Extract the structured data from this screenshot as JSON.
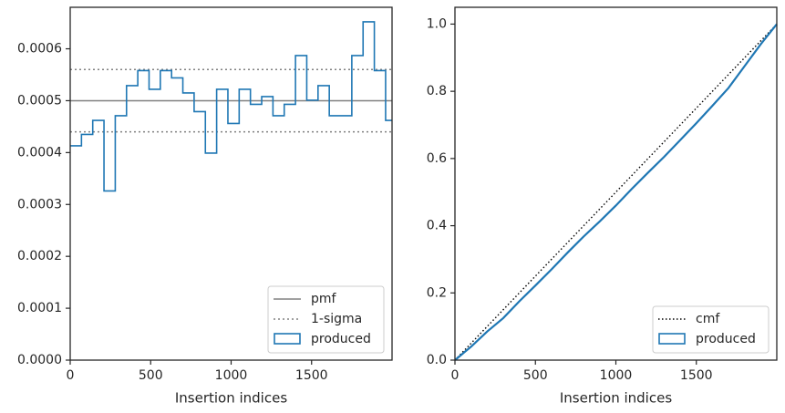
{
  "chart_data": [
    {
      "type": "line",
      "xlabel": "Insertion indices",
      "ylabel": "",
      "title": "",
      "xlim": [
        0,
        2000
      ],
      "ylim": [
        0,
        0.00068
      ],
      "xticks": [
        0,
        500,
        1000,
        1500
      ],
      "xtick_labels": [
        "0",
        "500",
        "1000",
        "1500"
      ],
      "yticks": [
        0,
        0.0001,
        0.0002,
        0.0003,
        0.0004,
        0.0005,
        0.0006
      ],
      "ytick_labels": [
        "0.0000",
        "0.0001",
        "0.0002",
        "0.0003",
        "0.0004",
        "0.0005",
        "0.0006"
      ],
      "grid": false,
      "legend_position": "lower-right",
      "hlines": [
        {
          "name": "pmf",
          "y": 0.0005,
          "style": "solid",
          "color": "#808080"
        },
        {
          "name": "1-sigma",
          "y": 0.00056,
          "style": "dotted",
          "color": "#808080"
        },
        {
          "name": "1-sigma",
          "y": 0.00044,
          "style": "dotted",
          "color": "#808080"
        }
      ],
      "histogram": {
        "name": "produced",
        "color": "#1f77b4",
        "bin_edges": [
          0,
          70,
          140,
          210,
          280,
          350,
          420,
          490,
          560,
          630,
          700,
          770,
          840,
          910,
          980,
          1050,
          1120,
          1190,
          1260,
          1330,
          1400,
          1470,
          1540,
          1610,
          1680,
          1750,
          1820,
          1890,
          1960,
          2000
        ],
        "values": [
          0.000413,
          0.000435,
          0.000462,
          0.000326,
          0.000471,
          0.000529,
          0.000558,
          0.000522,
          0.000558,
          0.000544,
          0.000515,
          0.000479,
          0.000399,
          0.000522,
          0.000456,
          0.000522,
          0.000493,
          0.000508,
          0.000471,
          0.000493,
          0.000587,
          0.000501,
          0.000529,
          0.000471,
          0.000471,
          0.000587,
          0.000652,
          0.000558,
          0.000462
        ]
      },
      "legend": [
        "pmf",
        "1-sigma",
        "produced"
      ]
    },
    {
      "type": "line",
      "xlabel": "Insertion indices",
      "ylabel": "",
      "title": "",
      "xlim": [
        0,
        2000
      ],
      "ylim": [
        0,
        1.05
      ],
      "xticks": [
        0,
        500,
        1000,
        1500
      ],
      "xtick_labels": [
        "0",
        "500",
        "1000",
        "1500"
      ],
      "yticks": [
        0,
        0.2,
        0.4,
        0.6,
        0.8,
        1.0
      ],
      "ytick_labels": [
        "0.0",
        "0.2",
        "0.4",
        "0.6",
        "0.8",
        "1.0"
      ],
      "grid": false,
      "legend_position": "lower-right",
      "series": [
        {
          "name": "cmf",
          "style": "dotted",
          "color": "#000000",
          "x": [
            0,
            2000
          ],
          "y": [
            0,
            1.0
          ]
        },
        {
          "name": "produced",
          "style": "solid",
          "color": "#1f77b4",
          "x": [
            0,
            100,
            200,
            300,
            400,
            500,
            600,
            700,
            800,
            900,
            1000,
            1100,
            1200,
            1300,
            1400,
            1500,
            1600,
            1700,
            1800,
            1900,
            2000
          ],
          "y": [
            0,
            0.04,
            0.085,
            0.125,
            0.175,
            0.222,
            0.27,
            0.32,
            0.368,
            0.413,
            0.46,
            0.51,
            0.558,
            0.605,
            0.655,
            0.705,
            0.757,
            0.81,
            0.875,
            0.94,
            1.0
          ]
        }
      ],
      "legend": [
        "cmf",
        "produced"
      ]
    }
  ]
}
